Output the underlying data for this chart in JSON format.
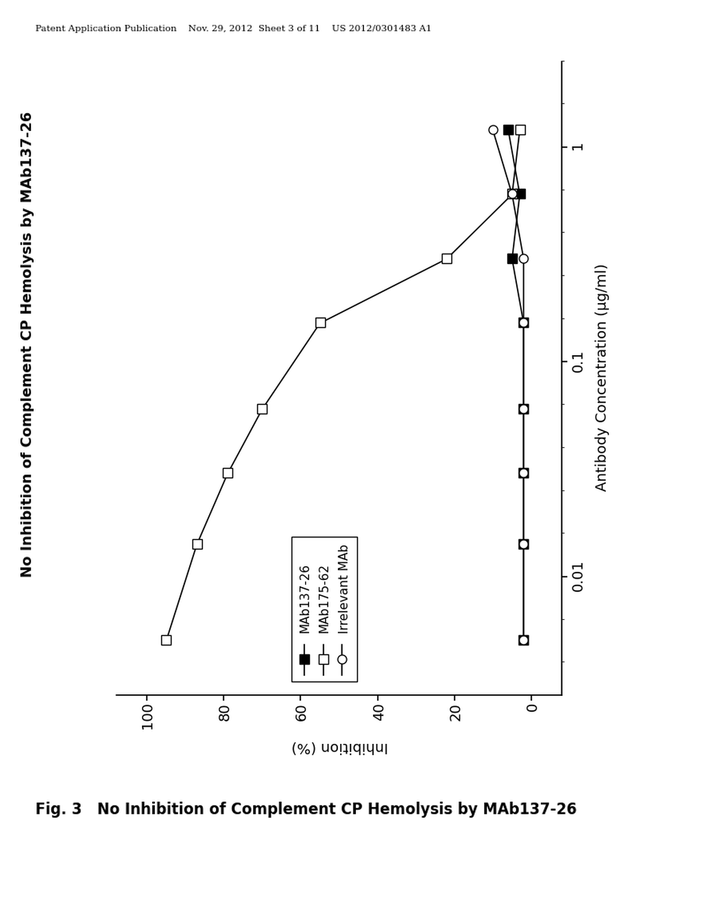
{
  "header": "Patent Application Publication    Nov. 29, 2012  Sheet 3 of 11    US 2012/0301483 A1",
  "fig_caption": "Fig. 3   No Inhibition of Complement CP Hemolysis by MAb137-26",
  "rotated_title": "No Inhibition of Complement CP Hemolysis by MAb137-26",
  "xlabel": "Antibody Concentration (μg/ml)",
  "ylabel": "Inhibition (%)",
  "xlim_log": [
    -2.55,
    0.4
  ],
  "ylim": [
    -8,
    108
  ],
  "yticks": [
    0,
    20,
    40,
    60,
    80,
    100
  ],
  "xtick_positions": [
    -2,
    -1,
    0
  ],
  "xtick_labels": [
    "0.01",
    "0.1",
    "1"
  ],
  "MAb137_26_x": [
    -2.3,
    -1.85,
    -1.52,
    -1.22,
    -0.82,
    -0.52,
    -0.22,
    0.08
  ],
  "MAb137_26_y": [
    2,
    2,
    2,
    2,
    2,
    5,
    3,
    6
  ],
  "MAb175_62_x": [
    -2.3,
    -1.85,
    -1.52,
    -1.22,
    -0.82,
    -0.52,
    -0.22,
    0.08
  ],
  "MAb175_62_y": [
    95,
    87,
    79,
    70,
    55,
    22,
    5,
    3
  ],
  "Irrelevant_x": [
    -2.3,
    -1.85,
    -1.52,
    -1.22,
    -0.82,
    -0.52,
    -0.22,
    0.08
  ],
  "Irrelevant_y": [
    2,
    2,
    2,
    2,
    2,
    2,
    5,
    10
  ],
  "background_color": "#ffffff"
}
